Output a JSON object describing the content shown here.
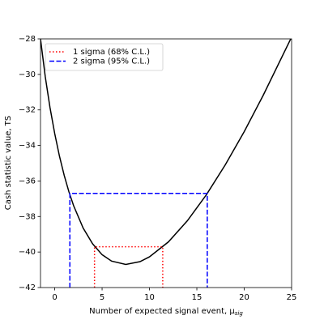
{
  "chart_data": {
    "type": "line",
    "xlabel": "Number of expected signal event, μ",
    "xlabel_sub": "sig",
    "ylabel": "Cash statistic value, TS",
    "xlim": [
      -1.5,
      25
    ],
    "ylim": [
      -42,
      -28
    ],
    "xticks": [
      0,
      5,
      10,
      15,
      20,
      25
    ],
    "yticks": [
      {
        "value": -42,
        "label": "−42"
      },
      {
        "value": -40,
        "label": "−40"
      },
      {
        "value": -38,
        "label": "−38"
      },
      {
        "value": -36,
        "label": "−36"
      },
      {
        "value": -34,
        "label": "−34"
      },
      {
        "value": -32,
        "label": "−32"
      },
      {
        "value": -30,
        "label": "−30"
      },
      {
        "value": -28,
        "label": "−28"
      }
    ],
    "legend": "upper left",
    "series": [
      {
        "color": "#000000",
        "style": "solid",
        "x": [
          -1.5,
          -1,
          -0.5,
          0,
          0.5,
          1,
          1.5,
          2,
          3,
          4,
          5,
          6,
          7.5,
          9,
          10,
          12,
          14,
          16,
          18,
          20,
          22,
          25
        ],
        "values": [
          -28.0,
          -30.12,
          -31.86,
          -33.33,
          -34.6,
          -35.68,
          -36.61,
          -37.4,
          -38.65,
          -39.54,
          -40.15,
          -40.51,
          -40.7,
          -40.54,
          -40.27,
          -39.43,
          -38.24,
          -36.78,
          -35.09,
          -33.22,
          -31.18,
          -27.9
        ]
      },
      {
        "name": "1 sigma (68% C.L.)",
        "color": "#ff0000",
        "style": "dotted",
        "x": [
          4.2,
          4.2,
          11.4,
          11.4
        ],
        "values": [
          -42,
          -39.7,
          -39.7,
          -42
        ]
      },
      {
        "name": "2 sigma (95% C.L.)",
        "color": "#0000ff",
        "style": "dashed",
        "x": [
          1.6,
          1.6,
          16.1,
          16.1
        ],
        "values": [
          -42,
          -36.7,
          -36.7,
          -42
        ]
      }
    ]
  }
}
